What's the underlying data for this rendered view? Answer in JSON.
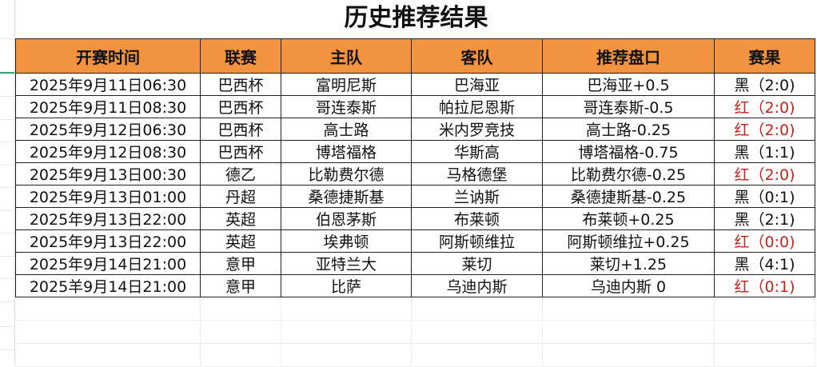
{
  "title": "历史推荐结果",
  "headers": [
    "开赛时间",
    "联赛",
    "主队",
    "客队",
    "推荐盘口",
    "赛果"
  ],
  "rows": [
    {
      "time": "2025年9月11日06:30",
      "league": "巴西杯",
      "home": "富明尼斯",
      "away": "巴海亚",
      "pick": "巴海亚+0.5",
      "result": "黑（2:0)",
      "status": "black"
    },
    {
      "time": "2025年9月11日08:30",
      "league": "巴西杯",
      "home": "哥连泰斯",
      "away": "帕拉尼恩斯",
      "pick": "哥连泰斯-0.5",
      "result": "红（2:0)",
      "status": "red"
    },
    {
      "time": "2025年9月12日06:30",
      "league": "巴西杯",
      "home": "高士路",
      "away": "米内罗竞技",
      "pick": "高士路-0.25",
      "result": "红（2:0)",
      "status": "red"
    },
    {
      "time": "2025年9月12日08:30",
      "league": "巴西杯",
      "home": "博塔福格",
      "away": "华斯高",
      "pick": "博塔福格-0.75",
      "result": "黑（1:1)",
      "status": "black"
    },
    {
      "time": "2025年9月13日00:30",
      "league": "德乙",
      "home": "比勒费尔德",
      "away": "马格德堡",
      "pick": "比勒费尔德-0.25",
      "result": "红（2:0)",
      "status": "red"
    },
    {
      "time": "2025年9月13日01:00",
      "league": "丹超",
      "home": "桑德捷斯基",
      "away": "兰讷斯",
      "pick": "桑德捷斯基-0.25",
      "result": "黑（0:1)",
      "status": "black"
    },
    {
      "time": "2025年9月13日22:00",
      "league": "英超",
      "home": "伯恩茅斯",
      "away": "布莱顿",
      "pick": "布莱顿+0.25",
      "result": "黑（2:1)",
      "status": "black"
    },
    {
      "time": "2025年9月13日22:00",
      "league": "英超",
      "home": "埃弗顿",
      "away": "阿斯顿维拉",
      "pick": "阿斯顿维拉+0.25",
      "result": "红（0:0)",
      "status": "red"
    },
    {
      "time": "2025年9月14日21:00",
      "league": "意甲",
      "home": "亚特兰大",
      "away": "莱切",
      "pick": "莱切+1.25",
      "result": "黑（4:1)",
      "status": "black"
    },
    {
      "time": "2025羊9月14日21:00",
      "league": "意甲",
      "home": "比萨",
      "away": "乌迪内斯",
      "pick": "乌迪内斯 0",
      "result": "红（0:1)",
      "status": "red"
    }
  ],
  "colors": {
    "header_bg": "#f2943f",
    "red": "#c8221c",
    "black": "#111111"
  }
}
